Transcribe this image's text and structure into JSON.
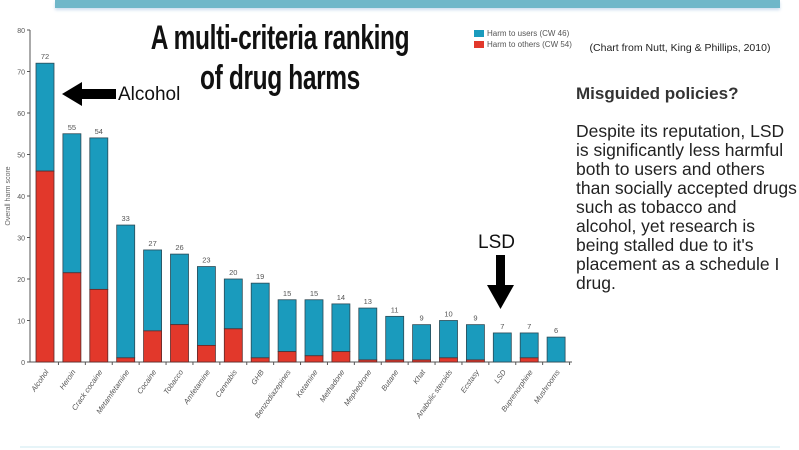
{
  "slide": {
    "title": "A multi-criteria ranking of drug harms",
    "source": "(Chart from Nutt, King & Phillips, 2010)",
    "heading": "Misguided policies?",
    "body": "Despite its reputation, LSD is significantly less harmful both to users and others than socially accepted drugs such as tobacco and alcohol, yet research is being stalled due to it's placement as a schedule I drug.",
    "annotation_alcohol": "Alcohol",
    "annotation_lsd": "LSD"
  },
  "chart_data": {
    "type": "bar",
    "stacked": true,
    "ylabel": "Overall harm score",
    "ylim": [
      0,
      80
    ],
    "yticks": [
      0,
      10,
      20,
      30,
      40,
      50,
      60,
      70,
      80
    ],
    "legend_position": "top-right",
    "categories": [
      "Alcohol",
      "Heroin",
      "Crack cocaine",
      "Metamfetamine",
      "Cocaine",
      "Tobacco",
      "Amfetamine",
      "Cannabis",
      "GHB",
      "Benzodiazepines",
      "Ketamine",
      "Methadone",
      "Mephedrone",
      "Butane",
      "Khat",
      "Anabolic steroids",
      "Ecstasy",
      "LSD",
      "Buprenorphine",
      "Mushrooms"
    ],
    "totals": [
      72,
      55,
      54,
      33,
      27,
      26,
      23,
      20,
      19,
      15,
      15,
      14,
      13,
      11,
      9,
      10,
      9,
      7,
      7,
      6
    ],
    "series": [
      {
        "name": "Harm to others (CW 54)",
        "color": "#e2382b",
        "values": [
          46,
          21.5,
          17.5,
          1,
          7.5,
          9,
          4,
          8,
          1,
          2.5,
          1.5,
          2.5,
          0.5,
          0.5,
          0.5,
          1,
          0.5,
          0,
          1,
          0
        ]
      },
      {
        "name": "Harm to users (CW 46)",
        "color": "#1a9bbd",
        "values": [
          26,
          33.5,
          36.5,
          32,
          19.5,
          17,
          19,
          12,
          18,
          12.5,
          13.5,
          11.5,
          12.5,
          10.5,
          8.5,
          9,
          8.5,
          7,
          6,
          6
        ]
      }
    ]
  }
}
